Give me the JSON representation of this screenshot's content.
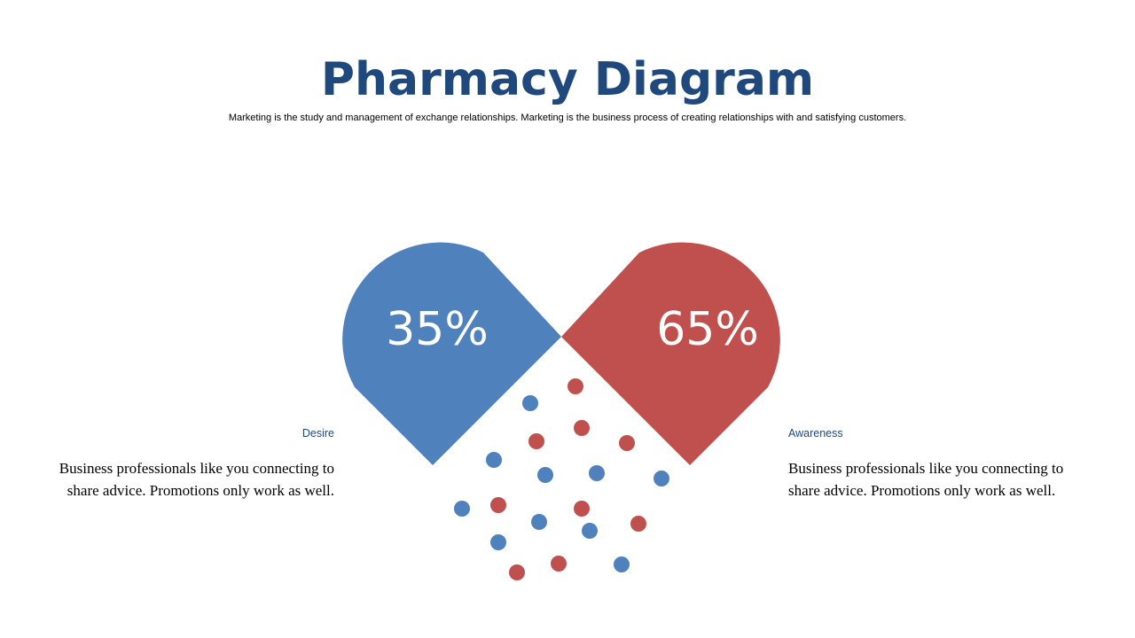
{
  "title": "Pharmacy Diagram",
  "subtitle": "Marketing is the study and management of exchange relationships. Marketing is the business process of creating relationships with and satisfying customers.",
  "left": {
    "percent": "35%",
    "label": "Desire",
    "text": "Business professionals like you connecting to share advice. Promotions only work as well.",
    "color": "#4f81bd"
  },
  "right": {
    "percent": "65%",
    "label": "Awareness",
    "text": "Business professionals like you connecting to share advice. Promotions only work as well.",
    "color": "#c0504d"
  },
  "colors": {
    "title": "#1f497d",
    "blue": "#4f81bd",
    "red": "#c0504d"
  }
}
